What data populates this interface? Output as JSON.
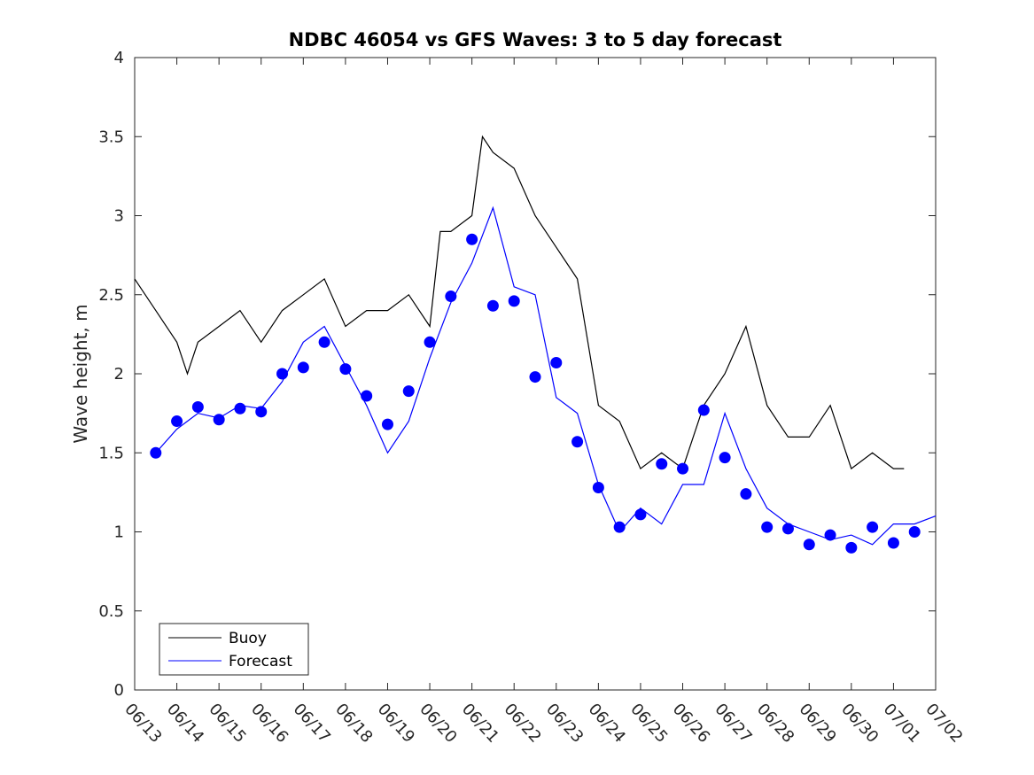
{
  "chart_data": {
    "type": "line",
    "title": "NDBC 46054 vs GFS Waves: 3 to 5 day forecast",
    "ylabel": "Wave height, m",
    "xlabel": "",
    "xlim": [
      "06/13",
      "07/02"
    ],
    "ylim": [
      0,
      4
    ],
    "yticks": [
      0,
      0.5,
      1,
      1.5,
      2,
      2.5,
      3,
      3.5,
      4
    ],
    "xtick_labels": [
      "06/13",
      "06/14",
      "06/15",
      "06/16",
      "06/17",
      "06/18",
      "06/19",
      "06/20",
      "06/21",
      "06/22",
      "06/23",
      "06/24",
      "06/25",
      "06/26",
      "06/27",
      "06/28",
      "06/29",
      "06/30",
      "07/01",
      "07/02"
    ],
    "grid": false,
    "legend": {
      "location": "bottom-left",
      "entries": [
        {
          "label": "Buoy",
          "color": "#000000"
        },
        {
          "label": "Forecast",
          "color": "#0000ff"
        }
      ]
    },
    "colors": {
      "buoy": "#000000",
      "forecast": "#0000ff",
      "markers": "#0000ff"
    },
    "series": [
      {
        "name": "Buoy",
        "color": "#000000",
        "x": [
          "06/13 00:00",
          "06/13 12:00",
          "06/14 00:00",
          "06/14 06:00",
          "06/14 12:00",
          "06/15 00:00",
          "06/15 12:00",
          "06/16 00:00",
          "06/16 12:00",
          "06/17 00:00",
          "06/17 12:00",
          "06/18 00:00",
          "06/18 12:00",
          "06/19 00:00",
          "06/19 12:00",
          "06/20 00:00",
          "06/20 06:00",
          "06/20 12:00",
          "06/21 00:00",
          "06/21 06:00",
          "06/21 12:00",
          "06/22 00:00",
          "06/22 12:00",
          "06/23 00:00",
          "06/23 12:00",
          "06/24 00:00",
          "06/24 12:00",
          "06/25 00:00",
          "06/25 12:00",
          "06/26 00:00",
          "06/26 12:00",
          "06/27 00:00",
          "06/27 12:00",
          "06/28 00:00",
          "06/28 12:00",
          "06/29 00:00",
          "06/29 12:00",
          "06/30 00:00",
          "06/30 12:00",
          "07/01 00:00",
          "07/01 06:00"
        ],
        "y": [
          2.6,
          2.4,
          2.2,
          2.0,
          2.2,
          2.3,
          2.4,
          2.2,
          2.4,
          2.5,
          2.6,
          2.3,
          2.4,
          2.4,
          2.5,
          2.3,
          2.9,
          2.9,
          3.0,
          3.5,
          3.4,
          3.3,
          3.0,
          2.8,
          2.6,
          1.8,
          1.7,
          1.4,
          1.5,
          1.4,
          1.8,
          2.0,
          2.3,
          1.8,
          1.6,
          1.6,
          1.8,
          1.4,
          1.5,
          1.4,
          1.4
        ]
      },
      {
        "name": "Forecast",
        "color": "#0000ff",
        "x": [
          "06/13 12:00",
          "06/14 00:00",
          "06/14 12:00",
          "06/15 00:00",
          "06/15 12:00",
          "06/16 00:00",
          "06/16 12:00",
          "06/17 00:00",
          "06/17 12:00",
          "06/18 00:00",
          "06/18 12:00",
          "06/19 00:00",
          "06/19 12:00",
          "06/20 00:00",
          "06/20 12:00",
          "06/21 00:00",
          "06/21 12:00",
          "06/22 00:00",
          "06/22 12:00",
          "06/23 00:00",
          "06/23 12:00",
          "06/24 00:00",
          "06/24 12:00",
          "06/25 00:00",
          "06/25 12:00",
          "06/26 00:00",
          "06/26 12:00",
          "06/27 00:00",
          "06/27 12:00",
          "06/28 00:00",
          "06/28 12:00",
          "06/29 00:00",
          "06/29 12:00",
          "06/30 00:00",
          "06/30 12:00",
          "07/01 00:00",
          "07/01 12:00",
          "07/02 00:00"
        ],
        "y": [
          1.5,
          1.65,
          1.75,
          1.72,
          1.8,
          1.78,
          1.95,
          2.2,
          2.3,
          2.05,
          1.8,
          1.5,
          1.7,
          2.1,
          2.45,
          2.7,
          3.05,
          2.55,
          2.5,
          1.85,
          1.75,
          1.3,
          1.0,
          1.15,
          1.05,
          1.3,
          1.3,
          1.75,
          1.4,
          1.15,
          1.05,
          1.0,
          0.95,
          0.98,
          0.92,
          1.05,
          1.05,
          1.1
        ]
      },
      {
        "name": "",
        "type": "scatter",
        "color": "#0000ff",
        "x": [
          "06/13 12:00",
          "06/14 00:00",
          "06/14 12:00",
          "06/15 00:00",
          "06/15 12:00",
          "06/16 00:00",
          "06/16 12:00",
          "06/17 00:00",
          "06/17 12:00",
          "06/18 00:00",
          "06/18 12:00",
          "06/19 00:00",
          "06/19 12:00",
          "06/20 00:00",
          "06/20 12:00",
          "06/21 00:00",
          "06/21 12:00",
          "06/22 00:00",
          "06/22 12:00",
          "06/23 00:00",
          "06/23 12:00",
          "06/24 00:00",
          "06/24 12:00",
          "06/25 00:00",
          "06/25 12:00",
          "06/26 00:00",
          "06/26 12:00",
          "06/27 00:00",
          "06/27 12:00",
          "06/28 00:00",
          "06/28 12:00",
          "06/29 00:00",
          "06/29 12:00",
          "06/30 00:00",
          "06/30 12:00",
          "07/01 00:00",
          "07/01 12:00"
        ],
        "y": [
          1.5,
          1.7,
          1.79,
          1.71,
          1.78,
          1.76,
          2.0,
          2.04,
          2.2,
          2.03,
          1.86,
          1.68,
          1.89,
          2.2,
          2.49,
          2.85,
          2.43,
          2.46,
          1.98,
          2.07,
          1.57,
          1.28,
          1.03,
          1.11,
          1.43,
          1.4,
          1.77,
          1.47,
          1.24,
          1.03,
          1.02,
          0.92,
          0.98,
          0.9,
          1.03,
          0.93,
          1.0
        ]
      }
    ]
  }
}
